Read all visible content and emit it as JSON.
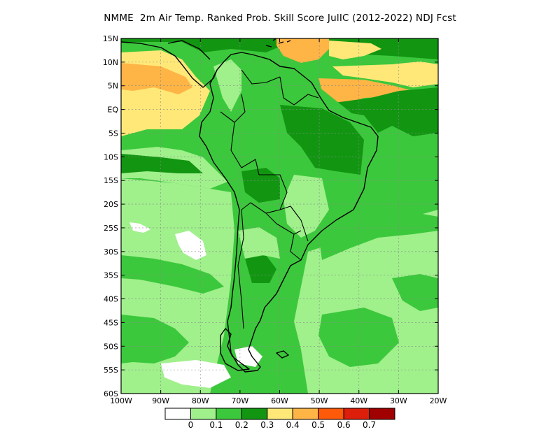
{
  "title": "NMME  2m Air Temp. Ranked Prob. Skill Score JulIC (2012-2022) NDJ Fcst",
  "map": {
    "lon_range": [
      -100,
      -20
    ],
    "lat_range": [
      -60,
      15
    ],
    "lon_ticks": [
      {
        "value": -100,
        "label": "100W"
      },
      {
        "value": -90,
        "label": "90W"
      },
      {
        "value": -80,
        "label": "80W"
      },
      {
        "value": -70,
        "label": "70W"
      },
      {
        "value": -60,
        "label": "60W"
      },
      {
        "value": -50,
        "label": "50W"
      },
      {
        "value": -40,
        "label": "40W"
      },
      {
        "value": -30,
        "label": "30W"
      },
      {
        "value": -20,
        "label": "20W"
      }
    ],
    "lat_ticks": [
      {
        "value": 15,
        "label": "15N"
      },
      {
        "value": 10,
        "label": "10N"
      },
      {
        "value": 5,
        "label": "5N"
      },
      {
        "value": 0,
        "label": "EQ"
      },
      {
        "value": -5,
        "label": "5S"
      },
      {
        "value": -10,
        "label": "10S"
      },
      {
        "value": -15,
        "label": "15S"
      },
      {
        "value": -20,
        "label": "20S"
      },
      {
        "value": -25,
        "label": "25S"
      },
      {
        "value": -30,
        "label": "30S"
      },
      {
        "value": -35,
        "label": "35S"
      },
      {
        "value": -40,
        "label": "40S"
      },
      {
        "value": -45,
        "label": "45S"
      },
      {
        "value": -50,
        "label": "50S"
      },
      {
        "value": -55,
        "label": "55S"
      },
      {
        "value": -60,
        "label": "60S"
      }
    ]
  },
  "colorbar": {
    "colors": [
      "#ffffff",
      "#a0f08c",
      "#3cc83c",
      "#129612",
      "#ffe878",
      "#ffb446",
      "#ff5a0a",
      "#dc1e0a",
      "#a00000"
    ],
    "labels": [
      "0",
      "0.1",
      "0.2",
      "0.3",
      "0.4",
      "0.5",
      "0.6",
      "0.7"
    ]
  }
}
